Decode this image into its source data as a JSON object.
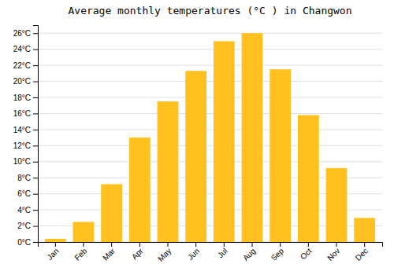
{
  "chart_data": {
    "type": "bar",
    "title": "Average monthly temperatures (°C ) in Changwon",
    "categories": [
      "Jan",
      "Feb",
      "Mar",
      "Apr",
      "May",
      "Jun",
      "Jul",
      "Aug",
      "Sep",
      "Oct",
      "Nov",
      "Dec"
    ],
    "values": [
      0.4,
      2.5,
      7.2,
      13.0,
      17.5,
      21.3,
      25.0,
      26.0,
      21.5,
      15.8,
      9.2,
      3.0
    ],
    "color": "#FFC020",
    "ylim": [
      0,
      27
    ],
    "yticks": [
      {
        "value": 0,
        "label": "0°C"
      },
      {
        "value": 2,
        "label": "2°C"
      },
      {
        "value": 4,
        "label": "4°C"
      },
      {
        "value": 6,
        "label": "6°C"
      },
      {
        "value": 8,
        "label": "8°C"
      },
      {
        "value": 10,
        "label": "10°C"
      },
      {
        "value": 12,
        "label": "12°C"
      },
      {
        "value": 14,
        "label": "14°C"
      },
      {
        "value": 16,
        "label": "16°C"
      },
      {
        "value": 18,
        "label": "18°C"
      },
      {
        "value": 20,
        "label": "20°C"
      },
      {
        "value": 22,
        "label": "22°C"
      },
      {
        "value": 24,
        "label": "24°C"
      },
      {
        "value": 26,
        "label": "26°C"
      }
    ],
    "grid": true
  }
}
